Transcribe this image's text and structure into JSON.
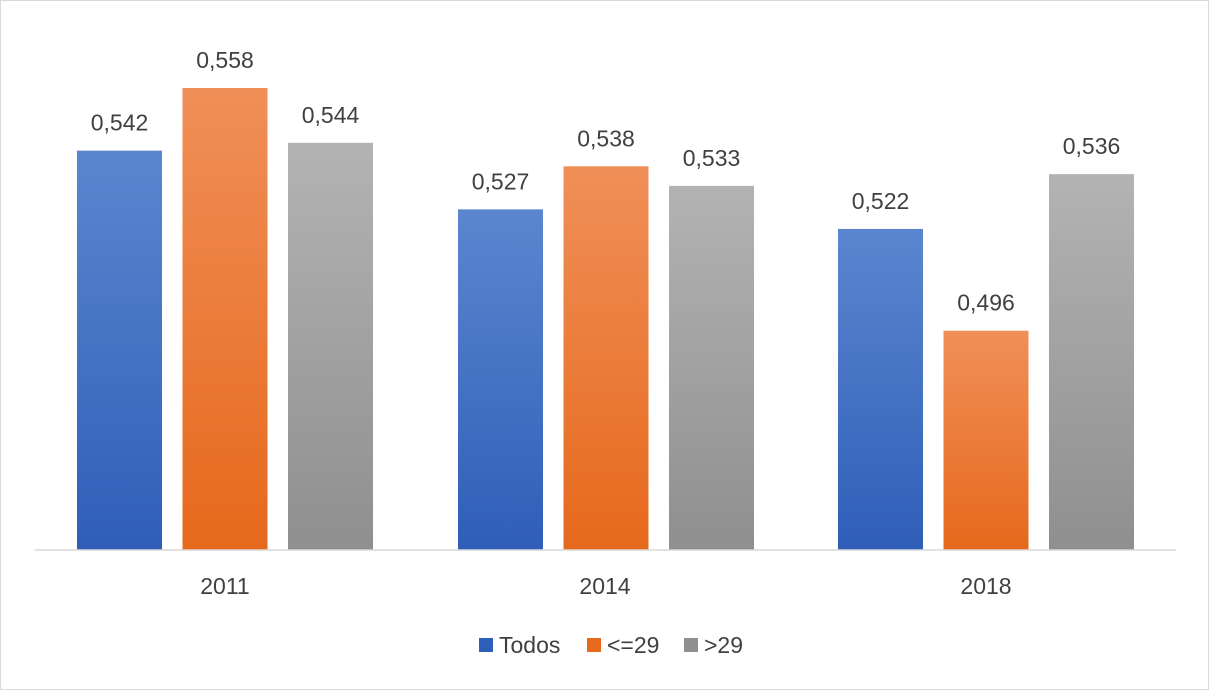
{
  "chart_data": {
    "type": "bar",
    "title": "",
    "xlabel": "",
    "ylabel": "",
    "categories": [
      "2011",
      "2014",
      "2018"
    ],
    "series": [
      {
        "name": "Todos",
        "values": [
          0.542,
          0.527,
          0.522
        ],
        "labels": [
          "0,542",
          "0,527",
          "0,522"
        ],
        "color_top": "#5b86cf",
        "color_bottom": "#2f5eb8"
      },
      {
        "name": "<=29",
        "values": [
          0.558,
          0.538,
          0.496
        ],
        "labels": [
          "0,558",
          "0,538",
          "0,496"
        ],
        "color_top": "#f08f58",
        "color_bottom": "#e6691c"
      },
      {
        "name": ">29",
        "values": [
          0.544,
          0.533,
          0.536
        ],
        "labels": [
          "0,544",
          "0,533",
          "0,536"
        ],
        "color_top": "#b3b3b3",
        "color_bottom": "#8f8f8f"
      }
    ],
    "ylim": [
      0.44,
      0.57
    ],
    "grid": false,
    "legend_position": "bottom",
    "axis_color": "#d9d9d9"
  }
}
